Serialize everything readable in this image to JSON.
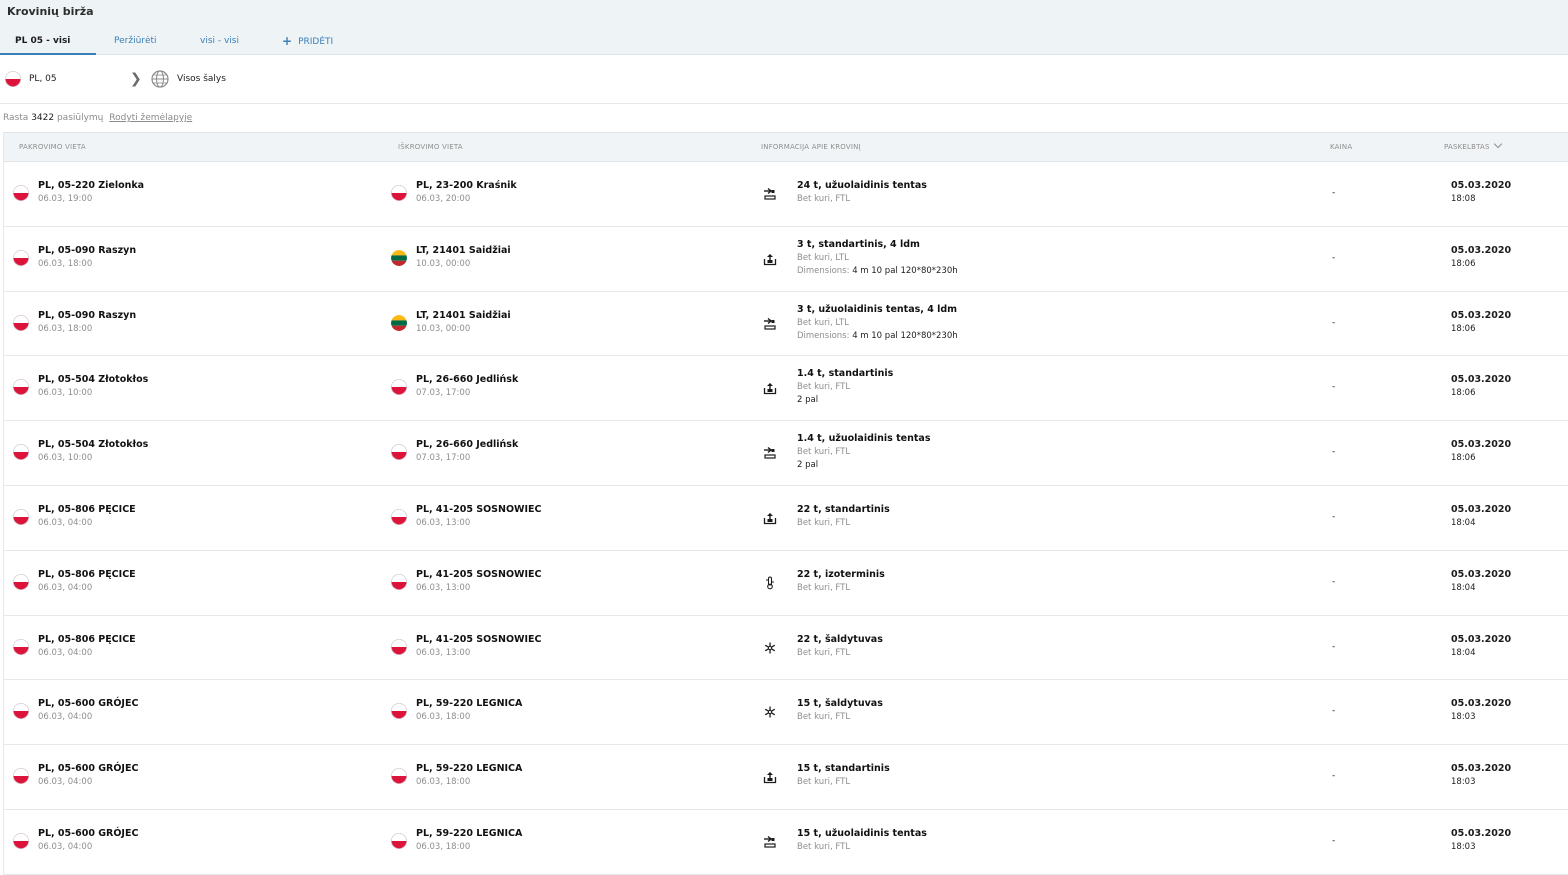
{
  "app": {
    "title": "Krovinių birža"
  },
  "tabs": [
    {
      "label": "PL 05 - visi",
      "active": true
    },
    {
      "label": "Peržiūrėti"
    },
    {
      "label": "visi - visi"
    },
    {
      "label": "PRIDĖTI",
      "icon": "plus-icon"
    }
  ],
  "filter": {
    "from_flag": "pl",
    "from": "PL, 05",
    "to": "Visos šalys",
    "to_icon": "globe-icon"
  },
  "results": {
    "prefix": "Rasta",
    "count": "3422",
    "suffix": "pasiūlymų",
    "map_link": "Rodyti žemėlapyje"
  },
  "columns": {
    "loading": "PAKROVIMO VIETA",
    "unloading": "IŠKROVIMO VIETA",
    "cargo": "INFORMACIJA APIE KROVINĮ",
    "price": "KAINA",
    "posted": "PASKELBTAS"
  },
  "colors": {
    "accent": "#3b7fb7",
    "pl_red": "#dc143c",
    "lt_yellow": "#fdb913",
    "lt_green": "#006a44",
    "lt_red": "#c1272d"
  },
  "rows": [
    {
      "load_flag": "pl",
      "load_city": "PL, 05-220 Zielonka",
      "load_time": "06.03, 19:00",
      "unload_flag": "pl",
      "unload_city": "PL, 23-200 Kraśnik",
      "unload_time": "06.03, 20:00",
      "cargo_icon": "side-loading-icon",
      "cargo_title": "24 t, užuolaidinis tentas",
      "cargo_sub": "Bet kuri, FTL",
      "dim_label": "",
      "dim_value": "",
      "pal": "",
      "price": "-",
      "posted_date": "05.03.2020",
      "posted_time": "18:08"
    },
    {
      "load_flag": "pl",
      "load_city": "PL, 05-090 Raszyn",
      "load_time": "06.03, 18:00",
      "unload_flag": "lt",
      "unload_city": "LT, 21401 Saidžiai",
      "unload_time": "10.03, 00:00",
      "cargo_icon": "top-loading-icon",
      "cargo_title": "3 t, standartinis, 4 ldm",
      "cargo_sub": "Bet kuri, LTL",
      "dim_label": "Dimensions:",
      "dim_value": "4 m 10 pal 120*80*230h",
      "pal": "",
      "price": "-",
      "posted_date": "05.03.2020",
      "posted_time": "18:06"
    },
    {
      "load_flag": "pl",
      "load_city": "PL, 05-090 Raszyn",
      "load_time": "06.03, 18:00",
      "unload_flag": "lt",
      "unload_city": "LT, 21401 Saidžiai",
      "unload_time": "10.03, 00:00",
      "cargo_icon": "side-loading-icon",
      "cargo_title": "3 t, užuolaidinis tentas, 4 ldm",
      "cargo_sub": "Bet kuri, LTL",
      "dim_label": "Dimensions:",
      "dim_value": "4 m 10 pal 120*80*230h",
      "pal": "",
      "price": "-",
      "posted_date": "05.03.2020",
      "posted_time": "18:06"
    },
    {
      "load_flag": "pl",
      "load_city": "PL, 05-504 Złotokłos",
      "load_time": "06.03, 10:00",
      "unload_flag": "pl",
      "unload_city": "PL, 26-660 Jedlińsk",
      "unload_time": "07.03, 17:00",
      "cargo_icon": "top-loading-icon",
      "cargo_title": "1.4 t, standartinis",
      "cargo_sub": "Bet kuri, FTL",
      "dim_label": "",
      "dim_value": "",
      "pal": "2 pal",
      "price": "-",
      "posted_date": "05.03.2020",
      "posted_time": "18:06"
    },
    {
      "load_flag": "pl",
      "load_city": "PL, 05-504 Złotokłos",
      "load_time": "06.03, 10:00",
      "unload_flag": "pl",
      "unload_city": "PL, 26-660 Jedlińsk",
      "unload_time": "07.03, 17:00",
      "cargo_icon": "side-loading-icon",
      "cargo_title": "1.4 t, užuolaidinis tentas",
      "cargo_sub": "Bet kuri, FTL",
      "dim_label": "",
      "dim_value": "",
      "pal": "2 pal",
      "price": "-",
      "posted_date": "05.03.2020",
      "posted_time": "18:06"
    },
    {
      "load_flag": "pl",
      "load_city": "PL, 05-806 PĘCICE",
      "load_time": "06.03, 04:00",
      "unload_flag": "pl",
      "unload_city": "PL, 41-205 SOSNOWIEC",
      "unload_time": "06.03, 13:00",
      "cargo_icon": "top-loading-icon",
      "cargo_title": "22 t, standartinis",
      "cargo_sub": "Bet kuri, FTL",
      "dim_label": "",
      "dim_value": "",
      "pal": "",
      "price": "-",
      "posted_date": "05.03.2020",
      "posted_time": "18:04"
    },
    {
      "load_flag": "pl",
      "load_city": "PL, 05-806 PĘCICE",
      "load_time": "06.03, 04:00",
      "unload_flag": "pl",
      "unload_city": "PL, 41-205 SOSNOWIEC",
      "unload_time": "06.03, 13:00",
      "cargo_icon": "thermometer-icon",
      "cargo_title": "22 t, izoterminis",
      "cargo_sub": "Bet kuri, FTL",
      "dim_label": "",
      "dim_value": "",
      "pal": "",
      "price": "-",
      "posted_date": "05.03.2020",
      "posted_time": "18:04"
    },
    {
      "load_flag": "pl",
      "load_city": "PL, 05-806 PĘCICE",
      "load_time": "06.03, 04:00",
      "unload_flag": "pl",
      "unload_city": "PL, 41-205 SOSNOWIEC",
      "unload_time": "06.03, 13:00",
      "cargo_icon": "snowflake-icon",
      "cargo_title": "22 t, šaldytuvas",
      "cargo_sub": "Bet kuri, FTL",
      "dim_label": "",
      "dim_value": "",
      "pal": "",
      "price": "-",
      "posted_date": "05.03.2020",
      "posted_time": "18:04"
    },
    {
      "load_flag": "pl",
      "load_city": "PL, 05-600 GRÓJEC",
      "load_time": "06.03, 04:00",
      "unload_flag": "pl",
      "unload_city": "PL, 59-220 LEGNICA",
      "unload_time": "06.03, 18:00",
      "cargo_icon": "snowflake-icon",
      "cargo_title": "15 t, šaldytuvas",
      "cargo_sub": "Bet kuri, FTL",
      "dim_label": "",
      "dim_value": "",
      "pal": "",
      "price": "-",
      "posted_date": "05.03.2020",
      "posted_time": "18:03"
    },
    {
      "load_flag": "pl",
      "load_city": "PL, 05-600 GRÓJEC",
      "load_time": "06.03, 04:00",
      "unload_flag": "pl",
      "unload_city": "PL, 59-220 LEGNICA",
      "unload_time": "06.03, 18:00",
      "cargo_icon": "top-loading-icon",
      "cargo_title": "15 t, standartinis",
      "cargo_sub": "Bet kuri, FTL",
      "dim_label": "",
      "dim_value": "",
      "pal": "",
      "price": "-",
      "posted_date": "05.03.2020",
      "posted_time": "18:03"
    },
    {
      "load_flag": "pl",
      "load_city": "PL, 05-600 GRÓJEC",
      "load_time": "06.03, 04:00",
      "unload_flag": "pl",
      "unload_city": "PL, 59-220 LEGNICA",
      "unload_time": "06.03, 18:00",
      "cargo_icon": "side-loading-icon",
      "cargo_title": "15 t, užuolaidinis tentas",
      "cargo_sub": "Bet kuri, FTL",
      "dim_label": "",
      "dim_value": "",
      "pal": "",
      "price": "-",
      "posted_date": "05.03.2020",
      "posted_time": "18:03"
    }
  ]
}
